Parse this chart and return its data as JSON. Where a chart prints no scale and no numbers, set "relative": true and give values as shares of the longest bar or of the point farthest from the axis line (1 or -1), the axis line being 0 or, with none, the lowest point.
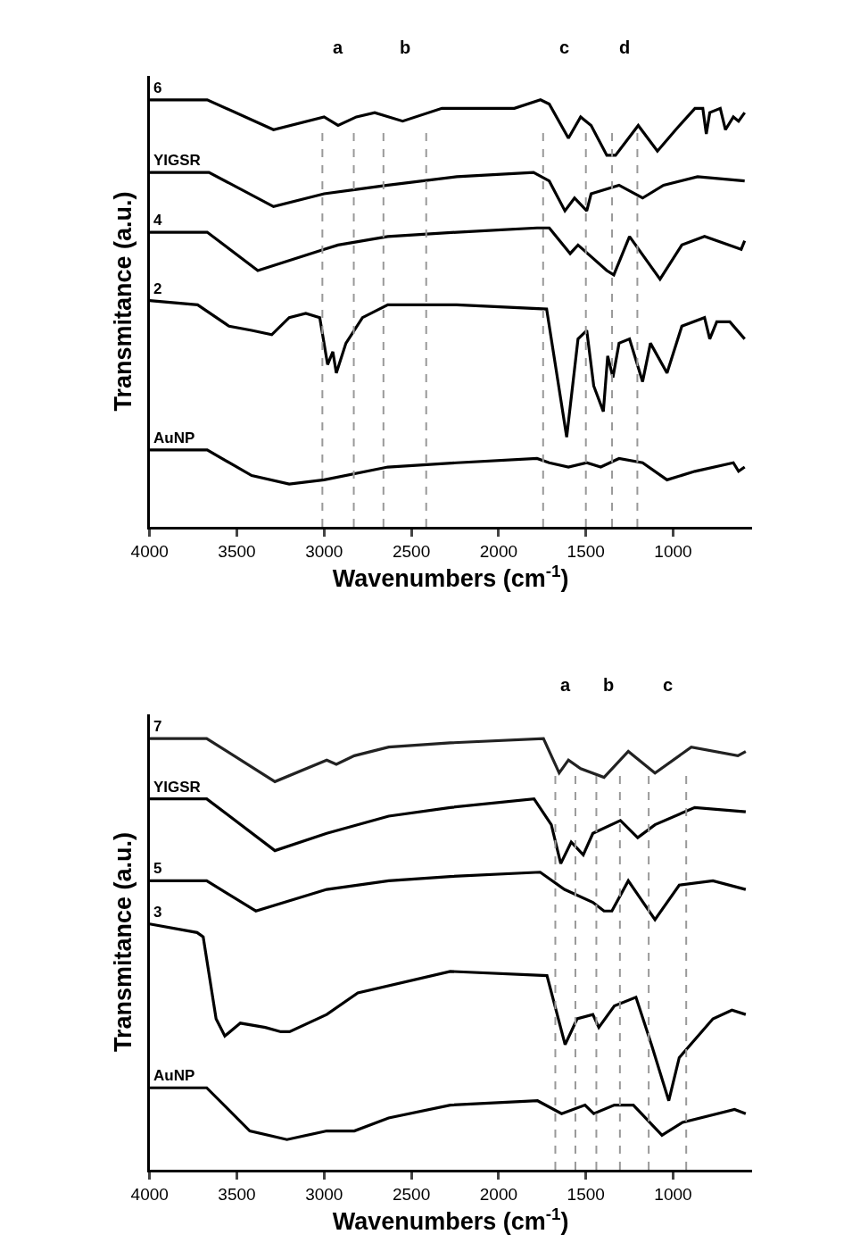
{
  "chart_data": [
    {
      "type": "line",
      "relative": true,
      "xlabel": "Wavenumbers (cm$^{-1}$)",
      "ylabel": "Transmitance (a.u.)",
      "xlim": [
        4000,
        550
      ],
      "xticks": [
        4000,
        3500,
        3000,
        2500,
        2000,
        1500,
        1000
      ],
      "legend": false,
      "marker": "none",
      "line_style": "solid",
      "tick_labels": "x",
      "series": [
        {
          "name": "6",
          "color": "#000000",
          "x": [
            4000,
            3670,
            3290,
            3000,
            2920,
            2815,
            2710,
            2550,
            2325,
            1910,
            1760,
            1710,
            1600,
            1530,
            1470,
            1380,
            1330,
            1200,
            1090,
            985,
            875,
            830,
            810,
            790,
            730,
            700,
            655,
            625,
            590
          ],
          "values": [
            1.0,
            1.0,
            0.93,
            0.96,
            0.94,
            0.96,
            0.97,
            0.95,
            0.98,
            0.98,
            1.0,
            0.99,
            0.91,
            0.96,
            0.94,
            0.87,
            0.87,
            0.94,
            0.88,
            0.93,
            0.98,
            0.98,
            0.92,
            0.97,
            0.98,
            0.93,
            0.96,
            0.95,
            0.97
          ]
        },
        {
          "name": "YIGSR",
          "color": "#000000",
          "x": [
            4000,
            3660,
            3290,
            3000,
            2815,
            2635,
            2240,
            1800,
            1710,
            1620,
            1565,
            1495,
            1470,
            1310,
            1175,
            1055,
            860,
            590
          ],
          "values": [
            0.83,
            0.83,
            0.75,
            0.78,
            0.79,
            0.8,
            0.82,
            0.83,
            0.81,
            0.74,
            0.77,
            0.74,
            0.78,
            0.8,
            0.77,
            0.8,
            0.82,
            0.81
          ]
        },
        {
          "name": "4",
          "color": "#000000",
          "x": [
            4000,
            3670,
            3380,
            3000,
            2920,
            2635,
            2240,
            1780,
            1710,
            1590,
            1545,
            1380,
            1340,
            1250,
            1075,
            950,
            820,
            610,
            590
          ],
          "values": [
            0.69,
            0.69,
            0.6,
            0.65,
            0.66,
            0.68,
            0.69,
            0.7,
            0.7,
            0.64,
            0.66,
            0.6,
            0.59,
            0.68,
            0.58,
            0.66,
            0.68,
            0.65,
            0.67
          ]
        },
        {
          "name": "2",
          "color": "#000000",
          "x": [
            4000,
            3725,
            3545,
            3415,
            3300,
            3200,
            3105,
            3025,
            2980,
            2950,
            2930,
            2875,
            2780,
            2635,
            2240,
            1725,
            1610,
            1545,
            1495,
            1455,
            1400,
            1375,
            1345,
            1310,
            1250,
            1175,
            1130,
            1035,
            950,
            820,
            790,
            750,
            675,
            590
          ],
          "values": [
            0.53,
            0.52,
            0.47,
            0.46,
            0.45,
            0.49,
            0.5,
            0.49,
            0.38,
            0.41,
            0.36,
            0.43,
            0.49,
            0.52,
            0.52,
            0.51,
            0.21,
            0.44,
            0.46,
            0.33,
            0.27,
            0.4,
            0.35,
            0.43,
            0.44,
            0.34,
            0.43,
            0.36,
            0.47,
            0.49,
            0.44,
            0.48,
            0.48,
            0.44
          ]
        },
        {
          "name": "AuNP",
          "color": "#000000",
          "x": [
            4000,
            3670,
            3415,
            3200,
            3000,
            2635,
            2240,
            1780,
            1710,
            1600,
            1495,
            1415,
            1310,
            1175,
            1035,
            875,
            655,
            625,
            590
          ],
          "values": [
            0.18,
            0.18,
            0.12,
            0.1,
            0.11,
            0.14,
            0.15,
            0.16,
            0.15,
            0.14,
            0.15,
            0.14,
            0.16,
            0.15,
            0.11,
            0.13,
            0.15,
            0.13,
            0.14
          ]
        }
      ],
      "ref_lines": [
        {
          "axis": "x",
          "value": 3010,
          "label": null,
          "color": "#999999",
          "line_style": "dashed"
        },
        {
          "axis": "x",
          "value": 2830,
          "label": null,
          "color": "#999999",
          "line_style": "dashed"
        },
        {
          "axis": "x",
          "value": 2660,
          "label": null,
          "color": "#999999",
          "line_style": "dashed"
        },
        {
          "axis": "x",
          "value": 2415,
          "label": null,
          "color": "#999999",
          "line_style": "dashed"
        },
        {
          "axis": "x",
          "value": 1745,
          "label": null,
          "color": "#999999",
          "line_style": "dashed"
        },
        {
          "axis": "x",
          "value": 1500,
          "label": null,
          "color": "#999999",
          "line_style": "dashed"
        },
        {
          "axis": "x",
          "value": 1350,
          "label": null,
          "color": "#999999",
          "line_style": "dashed"
        },
        {
          "axis": "x",
          "value": 1205,
          "label": null,
          "color": "#999999",
          "line_style": "dashed"
        }
      ],
      "annotations": [
        "a",
        "b",
        "c",
        "d"
      ]
    },
    {
      "type": "line",
      "relative": true,
      "xlabel": "Wavenumbers (cm$^{-1}$)",
      "ylabel": "Transmitance (a.u.)",
      "xlim": [
        4000,
        550
      ],
      "xticks": [
        4000,
        3500,
        3000,
        2500,
        2000,
        1500,
        1000
      ],
      "legend": false,
      "marker": "none",
      "line_style": "solid",
      "tick_labels": "x",
      "series": [
        {
          "name": "7",
          "color": "#222222",
          "x": [
            4000,
            3673,
            3282,
            2985,
            2930,
            2827,
            2630,
            2277,
            1743,
            1653,
            1600,
            1530,
            1396,
            1257,
            1104,
            896,
            629,
            584
          ],
          "values": [
            1.0,
            1.0,
            0.9,
            0.95,
            0.94,
            0.96,
            0.98,
            0.99,
            1.0,
            0.92,
            0.95,
            0.93,
            0.91,
            0.97,
            0.92,
            0.98,
            0.96,
            0.97
          ]
        },
        {
          "name": "YIGSR",
          "color": "#000000",
          "x": [
            4000,
            3673,
            3282,
            2985,
            2630,
            2277,
            1797,
            1698,
            1644,
            1584,
            1515,
            1460,
            1302,
            1203,
            1104,
            876,
            584
          ],
          "values": [
            0.86,
            0.86,
            0.74,
            0.78,
            0.82,
            0.84,
            0.86,
            0.8,
            0.71,
            0.76,
            0.73,
            0.78,
            0.81,
            0.77,
            0.8,
            0.84,
            0.83
          ]
        },
        {
          "name": "5",
          "color": "#000000",
          "x": [
            4000,
            3673,
            3391,
            2985,
            2630,
            2277,
            1762,
            1623,
            1460,
            1396,
            1351,
            1257,
            1104,
            965,
            772,
            584
          ],
          "values": [
            0.67,
            0.67,
            0.6,
            0.65,
            0.67,
            0.68,
            0.69,
            0.65,
            0.62,
            0.6,
            0.6,
            0.67,
            0.58,
            0.66,
            0.67,
            0.65
          ]
        },
        {
          "name": "3",
          "color": "#000000",
          "x": [
            4000,
            3728,
            3693,
            3619,
            3569,
            3480,
            3337,
            3248,
            3198,
            2985,
            2807,
            2277,
            1723,
            1619,
            1550,
            1460,
            1426,
            1337,
            1213,
            1124,
            1025,
            965,
            772,
            663,
            584
          ],
          "values": [
            0.57,
            0.55,
            0.54,
            0.35,
            0.31,
            0.34,
            0.33,
            0.32,
            0.32,
            0.36,
            0.41,
            0.46,
            0.45,
            0.29,
            0.35,
            0.36,
            0.33,
            0.38,
            0.4,
            0.29,
            0.16,
            0.26,
            0.35,
            0.37,
            0.36
          ]
        },
        {
          "name": "AuNP",
          "color": "#000000",
          "x": [
            4000,
            3673,
            3426,
            3213,
            2985,
            2827,
            2630,
            2277,
            1777,
            1639,
            1505,
            1455,
            1337,
            1228,
            1064,
            946,
            648,
            584
          ],
          "values": [
            0.19,
            0.19,
            0.09,
            0.07,
            0.09,
            0.09,
            0.12,
            0.15,
            0.16,
            0.13,
            0.15,
            0.13,
            0.15,
            0.15,
            0.08,
            0.11,
            0.14,
            0.13
          ]
        }
      ],
      "ref_lines": [
        {
          "axis": "x",
          "value": 1675,
          "label": null,
          "color": "#999999",
          "line_style": "dashed"
        },
        {
          "axis": "x",
          "value": 1560,
          "label": null,
          "color": "#999999",
          "line_style": "dashed"
        },
        {
          "axis": "x",
          "value": 1440,
          "label": null,
          "color": "#999999",
          "line_style": "dashed"
        },
        {
          "axis": "x",
          "value": 1305,
          "label": null,
          "color": "#999999",
          "line_style": "dashed"
        },
        {
          "axis": "x",
          "value": 1140,
          "label": null,
          "color": "#999999",
          "line_style": "dashed"
        },
        {
          "axis": "x",
          "value": 925,
          "label": null,
          "color": "#999999",
          "line_style": "dashed"
        }
      ],
      "annotations": [
        "a",
        "b",
        "c"
      ]
    }
  ]
}
